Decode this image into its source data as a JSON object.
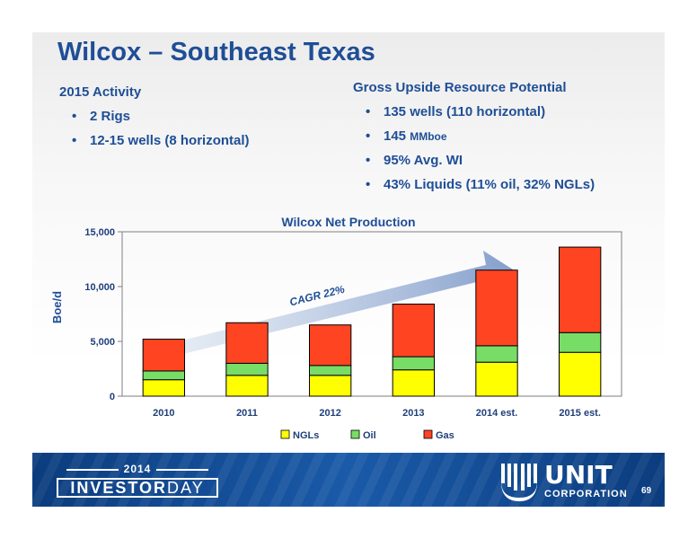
{
  "slide": {
    "title": "Wilcox – Southeast Texas",
    "left": {
      "heading": "2015 Activity",
      "bullets": [
        "2 Rigs",
        "12-15 wells (8 horizontal)"
      ]
    },
    "right": {
      "heading": "Gross Upside Resource Potential",
      "bullets": [
        {
          "main": "135 wells (110 horizontal)",
          "suffix": ""
        },
        {
          "main": "145 ",
          "suffix": "MMboe"
        },
        {
          "main": "95% Avg. WI",
          "suffix": ""
        },
        {
          "main": "43% Liquids (11% oil, 32% NGLs)",
          "suffix": ""
        }
      ]
    },
    "bullet_char": "•",
    "page_number": "69"
  },
  "footer": {
    "year": "2014",
    "investor": "INVESTOR",
    "day": "DAY",
    "company": "UNIT",
    "company_sub": "CORPORATION"
  },
  "chart_data": {
    "type": "bar",
    "stacked": true,
    "title": "Wilcox Net Production",
    "ylabel": "Boe/d",
    "xlabel": "",
    "ylim": [
      0,
      15000
    ],
    "yticks": [
      0,
      5000,
      10000,
      15000
    ],
    "ytick_labels": [
      "0",
      "5,000",
      "10,000",
      "15,000"
    ],
    "categories": [
      "2010",
      "2011",
      "2012",
      "2013",
      "2014 est.",
      "2015 est."
    ],
    "series": [
      {
        "name": "NGLs",
        "color": "#ffff00",
        "values": [
          1500,
          1900,
          1900,
          2400,
          3100,
          4000
        ]
      },
      {
        "name": "Oil",
        "color": "#77dd66",
        "values": [
          800,
          1100,
          900,
          1200,
          1500,
          1800
        ]
      },
      {
        "name": "Gas",
        "color": "#ff4422",
        "values": [
          2900,
          3700,
          3700,
          4800,
          6900,
          7800
        ]
      }
    ],
    "annotation": "CAGR 22%",
    "legend_position": "bottom",
    "grid": false
  }
}
